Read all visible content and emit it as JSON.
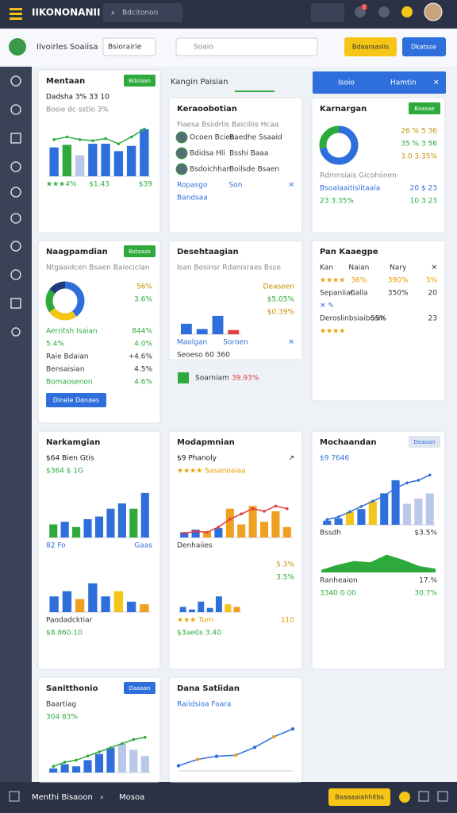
{
  "header": {
    "logo": "IIKONONANII",
    "search": "Bdcitonon",
    "badge": "2"
  },
  "toolbar": {
    "name": "Ilvoirles Soaiisa",
    "select": "Bsiorairie",
    "search": "Soaio",
    "primary": "Bdaaraaslis",
    "secondary": "Dkatsse"
  },
  "tab": "Kangin Paisian",
  "banner": {
    "left": "Isoio",
    "right": "Hamtin"
  },
  "note": [
    "Soarniam",
    "39.93%"
  ],
  "footer": {
    "title": "Menthi Bisaoon",
    "search": "Mosoa",
    "button": "Baaaaaiahhitbs"
  },
  "cards": [
    {
      "title": "Mentaan",
      "button": "Bdsiaan",
      "button_color": "#2eaa3c",
      "rows": [
        {
          "text": [
            "Dadsha 3% 33 10"
          ],
          "color": "#111"
        },
        {
          "text": [
            "Bosie dc sstlo 3%"
          ],
          "color": "#888"
        },
        {
          "chart": "bars",
          "ylim": [
            0,
            100
          ],
          "values": [
            55,
            60,
            40,
            62,
            62,
            48,
            58,
            90
          ],
          "color": "#2f6fdb",
          "colors": [
            "#2f6fdb",
            "#2eaa3c",
            "#b9c8e8",
            "#2f6fdb",
            "#2f6fdb",
            "#2f6fdb",
            "#2f6fdb",
            "#2f6fdb"
          ],
          "line": [
            70,
            75,
            70,
            68,
            72,
            62,
            75,
            90
          ],
          "line_color": "#2eaa3c"
        },
        {
          "text": [
            "★★★4%",
            "$1.43",
            "$39"
          ],
          "color": "#2eaa3c"
        }
      ]
    },
    {
      "title": "Keraoobotian",
      "rows": [
        {
          "text": [
            "Fiaesa Bsiidrlis Baiciliis Hcaa"
          ],
          "color": "#888"
        },
        {
          "text": [
            "Ocoen Bcien",
            "Baedhe Ssaaid"
          ],
          "avatar": true
        },
        {
          "text": [
            "Bdidsa Hli",
            "Bsshi Baaa"
          ],
          "avatar": true
        },
        {
          "text": [
            "Bsdoichhan",
            "Boilsde Bsaen"
          ],
          "avatar": true
        },
        {
          "text": [
            "Ropasgo",
            "Son",
            "✕"
          ],
          "color": "#2f6fdb"
        },
        {
          "text": [
            "Bandsaa"
          ],
          "color": "#2f6fdb"
        }
      ]
    },
    {
      "title": "Karnargan",
      "button": "Baasae",
      "button_color": "#2eaa3c",
      "rows": [
        {
          "chart": "donut",
          "values": [
            72,
            28
          ],
          "colors": [
            "#2f6fdb",
            "#2eaa3c"
          ],
          "side": [
            "26 %   5 36",
            "35 %   3 56",
            "3.0   3.35%"
          ]
        },
        {
          "text": [
            "Rdmnsiais Gicohiinen"
          ],
          "color": "#888"
        },
        {
          "text": [
            "Bsoalaaitislitaala",
            "20 $ 23"
          ],
          "color": "#2f6fdb"
        },
        {
          "text": [
            "23 3.35%",
            "10 3 23"
          ],
          "color": "#2eaa3c"
        }
      ]
    },
    {
      "title": "Naagpamdian",
      "button": "Bstaaas",
      "button_color": "#2eaa3c",
      "rows": [
        {
          "text": [
            "Ntgaaidcen Bsaen Baieciclan"
          ],
          "color": "#888"
        },
        {
          "chart": "donut",
          "values": [
            40,
            25,
            20,
            15
          ],
          "colors": [
            "#2f6fdb",
            "#f5c518",
            "#2eaa3c",
            "#223a7a"
          ],
          "side": [
            "56%",
            "3.6%"
          ]
        },
        {
          "text": [
            "Aerritsh Isaian",
            "844%"
          ],
          "color": "#2eaa3c"
        },
        {
          "text": [
            "5.4%",
            "4.0%"
          ],
          "color": "#2eaa3c"
        },
        {
          "text": [
            "Raie Bdaian",
            "+4.6%"
          ]
        },
        {
          "text": [
            "Bensaisian",
            "4.5%"
          ]
        },
        {
          "text": [
            "Bomaosenon",
            "4.6%"
          ],
          "color": "#2eaa3c"
        },
        {
          "button": "Dinele Danaes"
        }
      ]
    },
    {
      "title": "Desehtaagian",
      "rows": [
        {
          "text": [
            "Isan Bosinsr Rdanisraes Bsse"
          ],
          "color": "#888"
        },
        {
          "chart": "bars",
          "ylim": [
            0,
            100
          ],
          "values": [
            20,
            10,
            35,
            8
          ],
          "colors": [
            "#2f6fdb",
            "#2f6fdb",
            "#2f6fdb",
            "#e04040"
          ],
          "side": [
            "Deaseen",
            "$5.05%",
            "$0.39%"
          ]
        },
        {
          "text": [
            "Maolgan",
            "Soroen",
            "✕"
          ],
          "color": "#2f6fdb"
        },
        {
          "text": [
            "Seoeso 60 360"
          ]
        }
      ]
    },
    {
      "title": "Pan Kaaegpe",
      "rows": [
        {
          "text": [
            "Kan",
            "Naian",
            "Nary",
            "✕"
          ]
        },
        {
          "text": [
            "★★★★",
            "36%",
            "390%",
            "3%"
          ],
          "color": "#e6a000"
        },
        {
          "text": [
            "Sepaniian",
            "Calla",
            "350%",
            "20"
          ]
        },
        {
          "text": [
            "✕ ✎"
          ],
          "color": "#2f6fdb"
        },
        {
          "text": [
            "Deroslinbsiaibusin",
            "55%",
            "23"
          ]
        },
        {
          "text": [
            "★★★★"
          ],
          "color": "#e6a000"
        }
      ]
    },
    {
      "title": "Narkamgian",
      "rows": [
        {
          "text": [
            "$64 Bien Gtis"
          ],
          "color": "#111"
        },
        {
          "text": [
            "$364 $ 1G"
          ],
          "color": "#2eaa3c"
        },
        {
          "chart": "bars",
          "ylim": [
            0,
            100
          ],
          "values": [
            25,
            30,
            20,
            35,
            40,
            55,
            65,
            55,
            85
          ],
          "colors": [
            "#2eaa3c",
            "#2f6fdb",
            "#2eaa3c",
            "#2f6fdb",
            "#2f6fdb",
            "#2f6fdb",
            "#2f6fdb",
            "#2eaa3c",
            "#2f6fdb"
          ]
        },
        {
          "text": [
            "82 Fo",
            "Gaas"
          ],
          "color": "#2f6fdb"
        },
        {
          "chart": "bars",
          "ylim": [
            0,
            100
          ],
          "values": [
            30,
            40,
            25,
            55,
            30,
            40,
            20,
            15
          ],
          "colors": [
            "#2f6fdb",
            "#2f6fdb",
            "#f0a020",
            "#2f6fdb",
            "#2f6fdb",
            "#f5c518",
            "#2f6fdb",
            "#f0a020"
          ]
        },
        {
          "text": [
            "Paodadcktiar"
          ]
        },
        {
          "text": [
            "$8.860.10"
          ],
          "color": "#2eaa3c"
        }
      ]
    },
    {
      "title": "Modapmnian",
      "rows": [
        {
          "text": [
            "$9 Phanoly",
            "↗"
          ],
          "color": "#111"
        },
        {
          "text": [
            "★★★★ Sasanoaiaa"
          ],
          "color": "#e6a000"
        },
        {
          "chart": "bars",
          "ylim": [
            0,
            100
          ],
          "values": [
            10,
            15,
            12,
            18,
            55,
            25,
            60,
            30,
            50,
            20
          ],
          "colors": [
            "#2f6fdb",
            "#2f6fdb",
            "#f0a020",
            "#2f6fdb",
            "#f0a020",
            "#f0a020",
            "#f0a020",
            "#f0a020",
            "#f0a020",
            "#f0a020"
          ],
          "line": [
            8,
            12,
            10,
            20,
            35,
            45,
            55,
            50,
            60,
            55
          ],
          "line_color": "#e04040"
        },
        {
          "text": [
            "Denhaiies"
          ]
        },
        {
          "chart": "bars",
          "ylim": [
            0,
            100
          ],
          "values": [
            10,
            5,
            20,
            8,
            30,
            15,
            10
          ],
          "colors": [
            "#2f6fdb",
            "#2f6fdb",
            "#2f6fdb",
            "#2f6fdb",
            "#2f6fdb",
            "#f5c518",
            "#f0a020"
          ],
          "side": [
            "5.3%",
            "3.5%"
          ]
        },
        {
          "text": [
            "★★★ Tum",
            "110"
          ],
          "color": "#e6a000"
        },
        {
          "text": [
            "$3ae0s 3.40"
          ],
          "color": "#2eaa3c"
        }
      ]
    },
    {
      "title": "Mochaandan",
      "button": "Deaoan",
      "button_color": "#dfe6f2",
      "rows": [
        {
          "text": [
            "$9 7646"
          ],
          "color": "#2f6fdb"
        },
        {
          "chart": "bars",
          "ylim": [
            0,
            100
          ],
          "values": [
            8,
            12,
            25,
            30,
            45,
            60,
            85,
            40,
            50,
            60
          ],
          "colors": [
            "#2f6fdb",
            "#2f6fdb",
            "#f5c518",
            "#2f6fdb",
            "#f5c518",
            "#2f6fdb",
            "#2f6fdb",
            "#b9c8e8",
            "#b9c8e8",
            "#b9c8e8"
          ],
          "line": [
            10,
            15,
            25,
            35,
            45,
            55,
            70,
            80,
            85,
            95
          ],
          "line_color": "#2f6fdb"
        },
        {
          "text": [
            "Bssdh",
            "$3.5%"
          ]
        },
        {
          "chart": "area",
          "ylim": [
            0,
            100
          ],
          "values": [
            10,
            30,
            45,
            40,
            70,
            50,
            25,
            15
          ],
          "color": "#2eaa3c"
        },
        {
          "text": [
            "Ranheaion",
            "17.%"
          ]
        },
        {
          "text": [
            "3340 0 00",
            "30.7%"
          ],
          "color": "#2eaa3c"
        }
      ]
    },
    {
      "title": "Sanitthonio",
      "button": "Daaaan",
      "button_color": "#2f6fdb",
      "rows": [
        {
          "text": [
            "Baartiag"
          ]
        },
        {
          "text": [
            "304 83%"
          ],
          "color": "#2eaa3c"
        },
        {
          "chart": "minibars",
          "ylim": [
            0,
            100
          ],
          "values": [
            10,
            20,
            15,
            30,
            45,
            60,
            70,
            55,
            40
          ],
          "colors": [
            "#2f6fdb",
            "#2f6fdb",
            "#2f6fdb",
            "#2f6fdb",
            "#2f6fdb",
            "#2f6fdb",
            "#b9c8e8",
            "#b9c8e8",
            "#b9c8e8"
          ],
          "line": [
            15,
            25,
            30,
            40,
            50,
            60,
            70,
            80,
            85
          ],
          "line_color": "#2eaa3c"
        }
      ]
    },
    {
      "title": "Dana Satiidan",
      "rows": [
        {
          "text": [
            "Raiidsioa Foara"
          ],
          "color": "#2f6fdb"
        },
        {
          "chart": "line",
          "ylim": [
            0,
            100
          ],
          "values": [
            10,
            22,
            28,
            30,
            45,
            65,
            80
          ],
          "color": "#2f6fdb"
        }
      ]
    }
  ]
}
